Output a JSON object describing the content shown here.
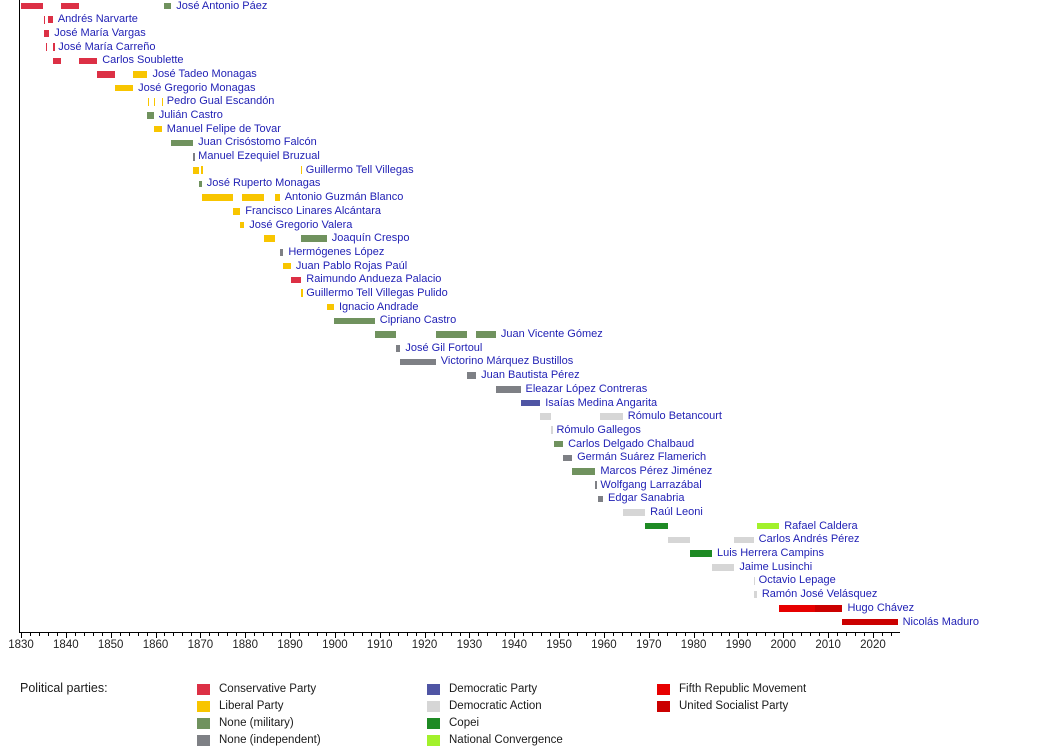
{
  "page": {
    "background": "#FFFFFF"
  },
  "colors": {
    "conservative": "#DC3045",
    "liberal": "#F8C500",
    "military": "#70925E",
    "independent": "#7E8085",
    "democratic_party": "#4F55A4",
    "democratic_action": "#D6D6D6",
    "copei": "#1E8A24",
    "convergence": "#A2F12B",
    "mvr": "#E70000",
    "psuv": "#CB0000",
    "label_text": "#1F1FB4",
    "axis": "#000000"
  },
  "chart_data": {
    "type": "timeline-gantt",
    "subject": "Presidents of Venezuela by term and political party",
    "x_axis": {
      "min": 1830,
      "max": 2026,
      "major_tick_interval": 10,
      "minor_tick_interval": 2,
      "labels": [
        "1830",
        "1840",
        "1850",
        "1860",
        "1870",
        "1880",
        "1890",
        "1900",
        "1910",
        "1920",
        "1930",
        "1940",
        "1950",
        "1960",
        "1970",
        "1980",
        "1990",
        "2000",
        "2010",
        "2020"
      ]
    },
    "presidents": [
      {
        "name": "José Antonio Páez",
        "terms": [
          {
            "start": 1830,
            "end": 1835,
            "party": "conservative"
          },
          {
            "start": 1839,
            "end": 1843,
            "party": "conservative"
          },
          {
            "start": 1861.9,
            "end": 1863.5,
            "party": "military"
          }
        ]
      },
      {
        "name": "Andrés Narvarte",
        "terms": [
          {
            "start": 1835.1,
            "end": 1835.1,
            "party": "conservative"
          },
          {
            "start": 1836.1,
            "end": 1837.1,
            "party": "conservative"
          }
        ]
      },
      {
        "name": "José María Vargas",
        "terms": [
          {
            "start": 1835.2,
            "end": 1836.3,
            "party": "conservative"
          }
        ]
      },
      {
        "name": "José María Carreño",
        "terms": [
          {
            "start": 1835.5,
            "end": 1835.5,
            "party": "conservative"
          },
          {
            "start": 1837.2,
            "end": 1837.2,
            "party": "conservative"
          }
        ]
      },
      {
        "name": "Carlos Soublette",
        "terms": [
          {
            "start": 1837.2,
            "end": 1839,
            "party": "conservative"
          },
          {
            "start": 1843,
            "end": 1847,
            "party": "conservative"
          }
        ]
      },
      {
        "name": "José Tadeo Monagas",
        "terms": [
          {
            "start": 1847,
            "end": 1851,
            "party": "conservative"
          },
          {
            "start": 1855,
            "end": 1858.2,
            "party": "liberal"
          }
        ]
      },
      {
        "name": "José Gregorio Monagas",
        "terms": [
          {
            "start": 1851,
            "end": 1855,
            "party": "liberal"
          }
        ]
      },
      {
        "name": "Pedro Gual Escandón",
        "terms": [
          {
            "start": 1858.3,
            "end": 1858.3,
            "party": "liberal"
          },
          {
            "start": 1859.6,
            "end": 1859.6,
            "party": "liberal"
          },
          {
            "start": 1861.4,
            "end": 1861.4,
            "party": "liberal"
          }
        ]
      },
      {
        "name": "Julián Castro",
        "terms": [
          {
            "start": 1858.2,
            "end": 1859.6,
            "party": "military"
          }
        ]
      },
      {
        "name": "Manuel Felipe de Tovar",
        "terms": [
          {
            "start": 1859.6,
            "end": 1861.4,
            "party": "liberal"
          }
        ]
      },
      {
        "name": "Juan Crisóstomo Falcón",
        "terms": [
          {
            "start": 1863.5,
            "end": 1868.4,
            "party": "military"
          }
        ]
      },
      {
        "name": "Manuel Ezequiel Bruzual",
        "terms": [
          {
            "start": 1868.4,
            "end": 1868.4,
            "party": "independent"
          }
        ]
      },
      {
        "name": "Guillermo Tell Villegas",
        "terms": [
          {
            "start": 1868.4,
            "end": 1869.6,
            "party": "liberal"
          },
          {
            "start": 1870.2,
            "end": 1870.2,
            "party": "liberal"
          },
          {
            "start": 1892.4,
            "end": 1892.4,
            "party": "liberal"
          }
        ]
      },
      {
        "name": "José Ruperto Monagas",
        "terms": [
          {
            "start": 1869.6,
            "end": 1870.3,
            "party": "military"
          }
        ]
      },
      {
        "name": "Antonio Guzmán Blanco",
        "terms": [
          {
            "start": 1870.3,
            "end": 1877.2,
            "party": "liberal"
          },
          {
            "start": 1879.2,
            "end": 1884.3,
            "party": "liberal"
          },
          {
            "start": 1886.7,
            "end": 1887.7,
            "party": "liberal"
          }
        ]
      },
      {
        "name": "Francisco Linares Alcántara",
        "terms": [
          {
            "start": 1877.2,
            "end": 1878.9,
            "party": "liberal"
          }
        ]
      },
      {
        "name": "José Gregorio Valera",
        "terms": [
          {
            "start": 1878.9,
            "end": 1879.8,
            "party": "liberal"
          }
        ]
      },
      {
        "name": "Joaquín Crespo",
        "terms": [
          {
            "start": 1884.3,
            "end": 1886.7,
            "party": "liberal"
          },
          {
            "start": 1892.5,
            "end": 1898.2,
            "party": "military"
          }
        ]
      },
      {
        "name": "Hermógenes López",
        "terms": [
          {
            "start": 1887.7,
            "end": 1888.5,
            "party": "independent"
          }
        ]
      },
      {
        "name": "Juan Pablo Rojas Paúl",
        "terms": [
          {
            "start": 1888.5,
            "end": 1890.2,
            "party": "liberal"
          }
        ]
      },
      {
        "name": "Raimundo Andueza Palacio",
        "terms": [
          {
            "start": 1890.2,
            "end": 1892.5,
            "party": "conservative"
          }
        ]
      },
      {
        "name": "Guillermo Tell Villegas Pulido",
        "terms": [
          {
            "start": 1892.5,
            "end": 1892.5,
            "party": "liberal"
          }
        ]
      },
      {
        "name": "Ignacio Andrade",
        "terms": [
          {
            "start": 1898.2,
            "end": 1899.8,
            "party": "liberal"
          }
        ]
      },
      {
        "name": "Cipriano Castro",
        "terms": [
          {
            "start": 1899.8,
            "end": 1908.9,
            "party": "military"
          }
        ]
      },
      {
        "name": "Juan Vicente Gómez",
        "terms": [
          {
            "start": 1908.9,
            "end": 1913.6,
            "party": "military"
          },
          {
            "start": 1922.5,
            "end": 1929.4,
            "party": "military"
          },
          {
            "start": 1931.5,
            "end": 1935.9,
            "party": "military"
          }
        ]
      },
      {
        "name": "José Gil Fortoul",
        "terms": [
          {
            "start": 1913.6,
            "end": 1914.6,
            "party": "independent"
          }
        ]
      },
      {
        "name": "Victorino Márquez Bustillos",
        "terms": [
          {
            "start": 1914.6,
            "end": 1922.5,
            "party": "independent"
          }
        ]
      },
      {
        "name": "Juan Bautista Pérez",
        "terms": [
          {
            "start": 1929.4,
            "end": 1931.5,
            "party": "independent"
          }
        ]
      },
      {
        "name": "Eleazar López Contreras",
        "terms": [
          {
            "start": 1935.9,
            "end": 1941.4,
            "party": "independent"
          }
        ]
      },
      {
        "name": "Isaías Medina Angarita",
        "terms": [
          {
            "start": 1941.4,
            "end": 1945.8,
            "party": "democratic_party"
          }
        ]
      },
      {
        "name": "Rómulo Betancourt",
        "terms": [
          {
            "start": 1945.8,
            "end": 1948.2,
            "party": "democratic_action"
          },
          {
            "start": 1959.1,
            "end": 1964.2,
            "party": "democratic_action"
          }
        ]
      },
      {
        "name": "Rómulo Gallegos",
        "terms": [
          {
            "start": 1948.3,
            "end": 1948.3,
            "party": "democratic_action"
          }
        ]
      },
      {
        "name": "Carlos Delgado Chalbaud",
        "terms": [
          {
            "start": 1948.9,
            "end": 1950.9,
            "party": "military"
          }
        ]
      },
      {
        "name": "Germán Suárez Flamerich",
        "terms": [
          {
            "start": 1950.9,
            "end": 1952.9,
            "party": "independent"
          }
        ]
      },
      {
        "name": "Marcos Pérez Jiménez",
        "terms": [
          {
            "start": 1952.9,
            "end": 1958.1,
            "party": "military"
          }
        ]
      },
      {
        "name": "Wolfgang Larrazábal",
        "terms": [
          {
            "start": 1958.1,
            "end": 1958.1,
            "party": "independent"
          }
        ]
      },
      {
        "name": "Edgar Sanabria",
        "terms": [
          {
            "start": 1958.7,
            "end": 1959.8,
            "party": "independent"
          }
        ]
      },
      {
        "name": "Raúl Leoni",
        "terms": [
          {
            "start": 1964.2,
            "end": 1969.2,
            "party": "democratic_action"
          }
        ]
      },
      {
        "name": "Rafael Caldera",
        "terms": [
          {
            "start": 1969.2,
            "end": 1974.2,
            "party": "copei"
          },
          {
            "start": 1994.1,
            "end": 1999.1,
            "party": "convergence"
          }
        ]
      },
      {
        "name": "Carlos Andrés Pérez",
        "terms": [
          {
            "start": 1974.2,
            "end": 1979.2,
            "party": "democratic_action"
          },
          {
            "start": 1989.1,
            "end": 1993.4,
            "party": "democratic_action"
          }
        ]
      },
      {
        "name": "Luis Herrera Campins",
        "terms": [
          {
            "start": 1979.2,
            "end": 1984.1,
            "party": "copei"
          }
        ]
      },
      {
        "name": "Jaime Lusinchi",
        "terms": [
          {
            "start": 1984.1,
            "end": 1989.1,
            "party": "democratic_action"
          }
        ]
      },
      {
        "name": "Octavio Lepage",
        "terms": [
          {
            "start": 1993.4,
            "end": 1993.4,
            "party": "democratic_action"
          }
        ]
      },
      {
        "name": "Ramón José Velásquez",
        "terms": [
          {
            "start": 1993.5,
            "end": 1994.1,
            "party": "democratic_action"
          }
        ]
      },
      {
        "name": "Hugo Chávez",
        "terms": [
          {
            "start": 1999.1,
            "end": 2007,
            "party": "mvr"
          },
          {
            "start": 2007,
            "end": 2013.2,
            "party": "psuv"
          }
        ]
      },
      {
        "name": "Nicolás Maduro",
        "terms": [
          {
            "start": 2013.2,
            "end": 2025.5,
            "party": "psuv"
          }
        ]
      }
    ]
  },
  "legend": {
    "title": "Political parties:",
    "columns": [
      {
        "items": [
          {
            "label": "Conservative Party",
            "color_key": "conservative"
          },
          {
            "label": "Liberal Party",
            "color_key": "liberal"
          },
          {
            "label": "None (military)",
            "color_key": "military"
          },
          {
            "label": "None (independent)",
            "color_key": "independent"
          }
        ]
      },
      {
        "items": [
          {
            "label": "Democratic Party",
            "color_key": "democratic_party"
          },
          {
            "label": "Democratic Action",
            "color_key": "democratic_action"
          },
          {
            "label": "Copei",
            "color_key": "copei"
          },
          {
            "label": "National Convergence",
            "color_key": "convergence"
          }
        ]
      },
      {
        "items": [
          {
            "label": "Fifth Republic Movement",
            "color_key": "mvr"
          },
          {
            "label": "United Socialist Party",
            "color_key": "psuv"
          }
        ]
      }
    ]
  }
}
